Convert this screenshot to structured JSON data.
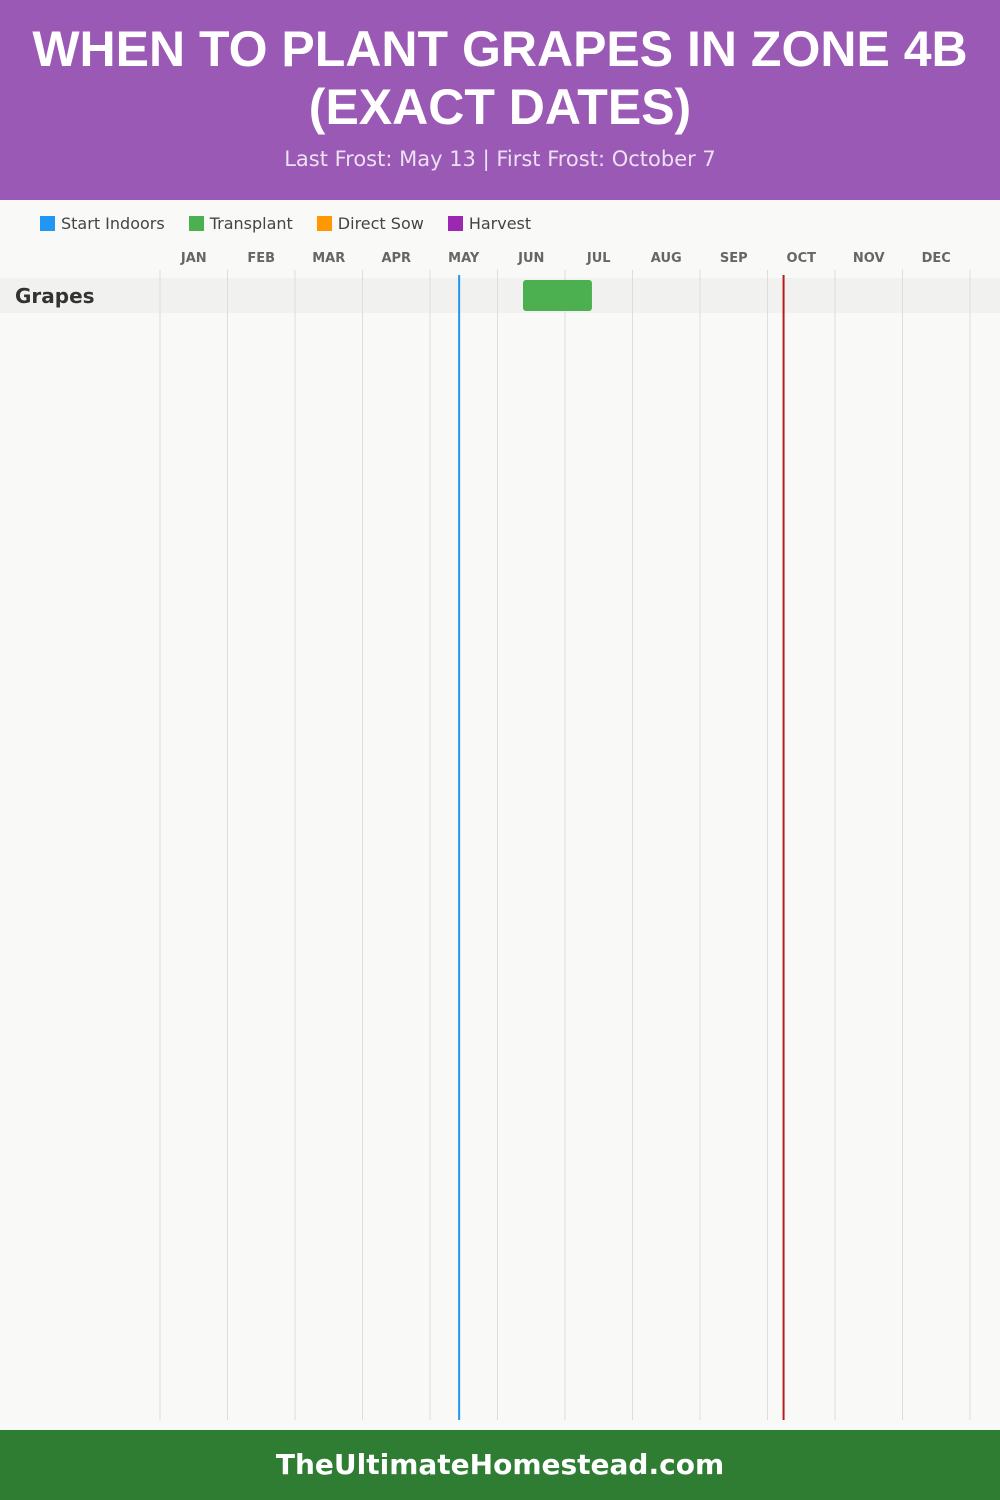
{
  "header": {
    "title": "When to Plant Grapes in Zone 4b (Exact Dates)",
    "subtitle": "Last Frost: May 13 | First Frost: October 7"
  },
  "legend": [
    {
      "label": "Start Indoors",
      "color": "#2196f3"
    },
    {
      "label": "Transplant",
      "color": "#4caf50"
    },
    {
      "label": "Direct Sow",
      "color": "#ff9800"
    },
    {
      "label": "Harvest",
      "color": "#9c27b0"
    }
  ],
  "chart_data": {
    "type": "gantt",
    "title": "When to Plant Grapes in Zone 4b (Exact Dates)",
    "months": [
      "JAN",
      "FEB",
      "MAR",
      "APR",
      "MAY",
      "JUN",
      "JUL",
      "AUG",
      "SEP",
      "OCT",
      "NOV",
      "DEC"
    ],
    "rows": [
      {
        "label": "Grapes",
        "bars": [
          {
            "type": "Transplant",
            "start": [
              6,
              11
            ],
            "end": [
              7,
              12
            ],
            "color": "#4caf50"
          }
        ]
      }
    ],
    "markers": [
      {
        "name": "Last Frost",
        "date": [
          5,
          13
        ],
        "color": "#2196f3"
      },
      {
        "name": "First Frost",
        "date": [
          10,
          7
        ],
        "color": "#b71c1c"
      }
    ],
    "grid": true
  },
  "footer": {
    "site": "TheUltimateHomestead.com"
  }
}
